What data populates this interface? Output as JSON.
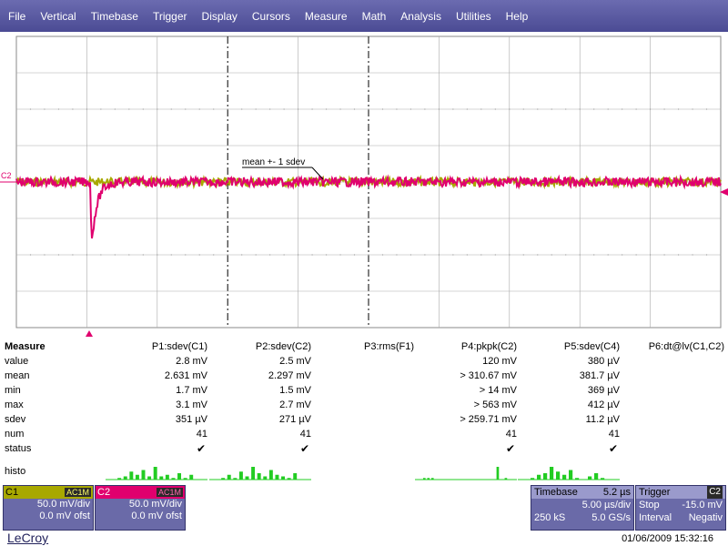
{
  "menu": [
    "File",
    "Vertical",
    "Timebase",
    "Trigger",
    "Display",
    "Cursors",
    "Measure",
    "Math",
    "Analysis",
    "Utilities",
    "Help"
  ],
  "display": {
    "c2_marker": "C2",
    "annotation": "mean +- 1 sdev",
    "colors": {
      "c1": "#a8a800",
      "c2": "#e0006e",
      "grid": "#444444"
    }
  },
  "measure": {
    "title": "Measure",
    "row_labels": [
      "value",
      "mean",
      "min",
      "max",
      "sdev",
      "num",
      "status"
    ],
    "histo_label": "histo",
    "params": [
      {
        "name": "P1:sdev(C1)",
        "values": [
          "2.8 mV",
          "2.631 mV",
          "1.7 mV",
          "3.1 mV",
          "351 µV",
          "41"
        ],
        "status": "✔",
        "histo": [
          1,
          2,
          5,
          3,
          6,
          2,
          8,
          2,
          3,
          1,
          4,
          1,
          3
        ]
      },
      {
        "name": "P2:sdev(C2)",
        "values": [
          "2.5 mV",
          "2.297 mV",
          "1.5 mV",
          "2.7 mV",
          "271 µV",
          "41"
        ],
        "status": "✔",
        "histo": [
          1,
          3,
          1,
          5,
          2,
          8,
          4,
          2,
          6,
          3,
          2,
          1,
          4
        ]
      },
      {
        "name": "P3:rms(F1)",
        "values": [
          "",
          "",
          "",
          "",
          "",
          ""
        ],
        "status": "",
        "histo": []
      },
      {
        "name": "P4:pkpk(C2)",
        "values": [
          "120 mV",
          "> 310.67 mV",
          "> 14 mV",
          "> 563 mV",
          "> 259.71 mV",
          "41"
        ],
        "status": "✔",
        "histo": [
          1,
          1,
          1,
          0,
          0,
          0,
          0,
          0,
          0,
          0,
          0,
          0,
          0,
          0,
          0,
          0,
          0,
          0,
          8,
          0,
          1
        ]
      },
      {
        "name": "P5:sdev(C4)",
        "values": [
          "380 µV",
          "381.7 µV",
          "369 µV",
          "412 µV",
          "11.2 µV",
          "41"
        ],
        "status": "✔",
        "histo": [
          1,
          3,
          4,
          8,
          5,
          3,
          6,
          1,
          0,
          2,
          4,
          1
        ]
      },
      {
        "name": "P6:dt@lv(C1,C2)",
        "values": [
          "",
          "",
          "",
          "",
          "",
          ""
        ],
        "status": "",
        "histo": []
      }
    ]
  },
  "channels": [
    {
      "name": "C1",
      "coupling": "AC1M",
      "vdiv": "50.0 mV/div",
      "offset": "0.0 mV ofst",
      "color": "#a8a800"
    },
    {
      "name": "C2",
      "coupling": "AC1M",
      "vdiv": "50.0 mV/div",
      "offset": "0.0 mV ofst",
      "color": "#e0006e"
    }
  ],
  "timebase": {
    "label": "Timebase",
    "delay": "5.2 µs",
    "tdiv": "5.00 µs/div",
    "samples": "250 kS",
    "rate": "5.0 GS/s"
  },
  "trigger": {
    "label": "Trigger",
    "source": "C2",
    "mode": "Stop",
    "level": "-15.0 mV",
    "type": "Interval",
    "slope": "Negativ"
  },
  "brand": "LeCroy",
  "datetime": "01/06/2009 15:32:16"
}
